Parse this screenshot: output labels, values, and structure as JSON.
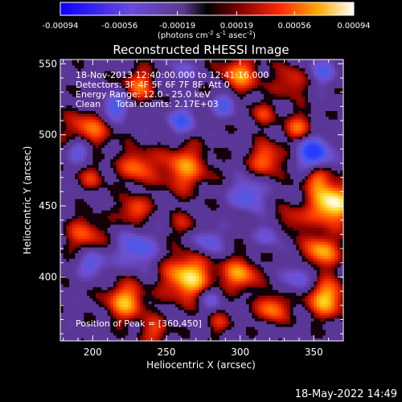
{
  "chart_data": {
    "type": "heatmap",
    "title": "Reconstructed RHESSI Image",
    "xlabel": "Heliocentric X (arcsec)",
    "ylabel": "Heliocentric Y (arcsec)",
    "xlim": [
      178,
      370
    ],
    "ylim": [
      355,
      553
    ],
    "x_ticks": [
      200,
      250,
      300,
      350
    ],
    "y_ticks": [
      400,
      450,
      500,
      550
    ],
    "colorbar": {
      "ticks": [
        "-0.00094",
        "-0.00056",
        "-0.00019",
        "0.00019",
        "0.00056",
        "0.00094"
      ],
      "vmin": -0.00094,
      "vmax": 0.00094,
      "units_main": "(photons cm",
      "units_sup1": "-2",
      "units_mid1": " s",
      "units_sup2": "-1",
      "units_mid2": " asec",
      "units_sup3": "-2",
      "units_end": ")"
    },
    "annotations": {
      "time_range": "18-Nov-2013 12:40:00.000 to 12:41:16.000",
      "detectors": "Detectors: 3F 4F 5F 6F 7F 8F, Att 0",
      "energy": "Energy Range: 12.0 - 25.0 keV",
      "algorithm": "Clean",
      "counts": "Total counts: 2.17E+03",
      "peak": "Position of Peak = [360,450]"
    },
    "peak_position": [
      360,
      450
    ],
    "blobs": [
      {
        "x": 362,
        "y": 452,
        "r": 10,
        "v": 1.0
      },
      {
        "x": 355,
        "y": 418,
        "r": 8,
        "v": 0.7
      },
      {
        "x": 358,
        "y": 385,
        "r": 9,
        "v": 0.75
      },
      {
        "x": 265,
        "y": 400,
        "r": 11,
        "v": 0.85
      },
      {
        "x": 300,
        "y": 402,
        "r": 8,
        "v": 0.65
      },
      {
        "x": 322,
        "y": 378,
        "r": 7,
        "v": 0.6
      },
      {
        "x": 222,
        "y": 383,
        "r": 9,
        "v": 0.7
      },
      {
        "x": 195,
        "y": 430,
        "r": 9,
        "v": 0.45
      },
      {
        "x": 262,
        "y": 477,
        "r": 11,
        "v": 0.6
      },
      {
        "x": 318,
        "y": 483,
        "r": 8,
        "v": 0.55
      },
      {
        "x": 230,
        "y": 478,
        "r": 8,
        "v": 0.55
      },
      {
        "x": 340,
        "y": 505,
        "r": 7,
        "v": 0.5
      },
      {
        "x": 197,
        "y": 503,
        "r": 10,
        "v": 0.55
      },
      {
        "x": 232,
        "y": 535,
        "r": 8,
        "v": 0.5
      },
      {
        "x": 300,
        "y": 542,
        "r": 9,
        "v": 0.6
      },
      {
        "x": 335,
        "y": 538,
        "r": 8,
        "v": 0.4
      },
      {
        "x": 228,
        "y": 447,
        "r": 7,
        "v": 0.5
      },
      {
        "x": 262,
        "y": 437,
        "r": 6,
        "v": 0.3
      },
      {
        "x": 335,
        "y": 440,
        "r": 7,
        "v": 0.35
      },
      {
        "x": 242,
        "y": 362,
        "r": 7,
        "v": 0.4
      },
      {
        "x": 285,
        "y": 368,
        "r": 6,
        "v": 0.3
      },
      {
        "x": 352,
        "y": 470,
        "r": 6,
        "v": 0.45
      },
      {
        "x": 200,
        "y": 470,
        "r": 6,
        "v": 0.35
      },
      {
        "x": 315,
        "y": 515,
        "r": 6,
        "v": 0.35
      },
      {
        "x": 260,
        "y": 510,
        "r": 7,
        "v": -0.55
      },
      {
        "x": 215,
        "y": 520,
        "r": 7,
        "v": -0.6
      },
      {
        "x": 290,
        "y": 522,
        "r": 6,
        "v": -0.55
      },
      {
        "x": 350,
        "y": 488,
        "r": 8,
        "v": -0.85
      },
      {
        "x": 192,
        "y": 490,
        "r": 6,
        "v": -0.6
      },
      {
        "x": 305,
        "y": 458,
        "r": 8,
        "v": -0.55
      },
      {
        "x": 278,
        "y": 425,
        "r": 7,
        "v": -0.45
      },
      {
        "x": 230,
        "y": 420,
        "r": 9,
        "v": -0.55
      },
      {
        "x": 200,
        "y": 410,
        "r": 7,
        "v": -0.5
      },
      {
        "x": 340,
        "y": 400,
        "r": 7,
        "v": -0.45
      },
      {
        "x": 280,
        "y": 385,
        "r": 6,
        "v": -0.4
      },
      {
        "x": 355,
        "y": 545,
        "r": 7,
        "v": -0.45
      },
      {
        "x": 260,
        "y": 545,
        "r": 6,
        "v": -0.35
      },
      {
        "x": 320,
        "y": 430,
        "r": 6,
        "v": -0.4
      }
    ]
  },
  "footer": {
    "timestamp": "18-May-2022 14:49"
  }
}
